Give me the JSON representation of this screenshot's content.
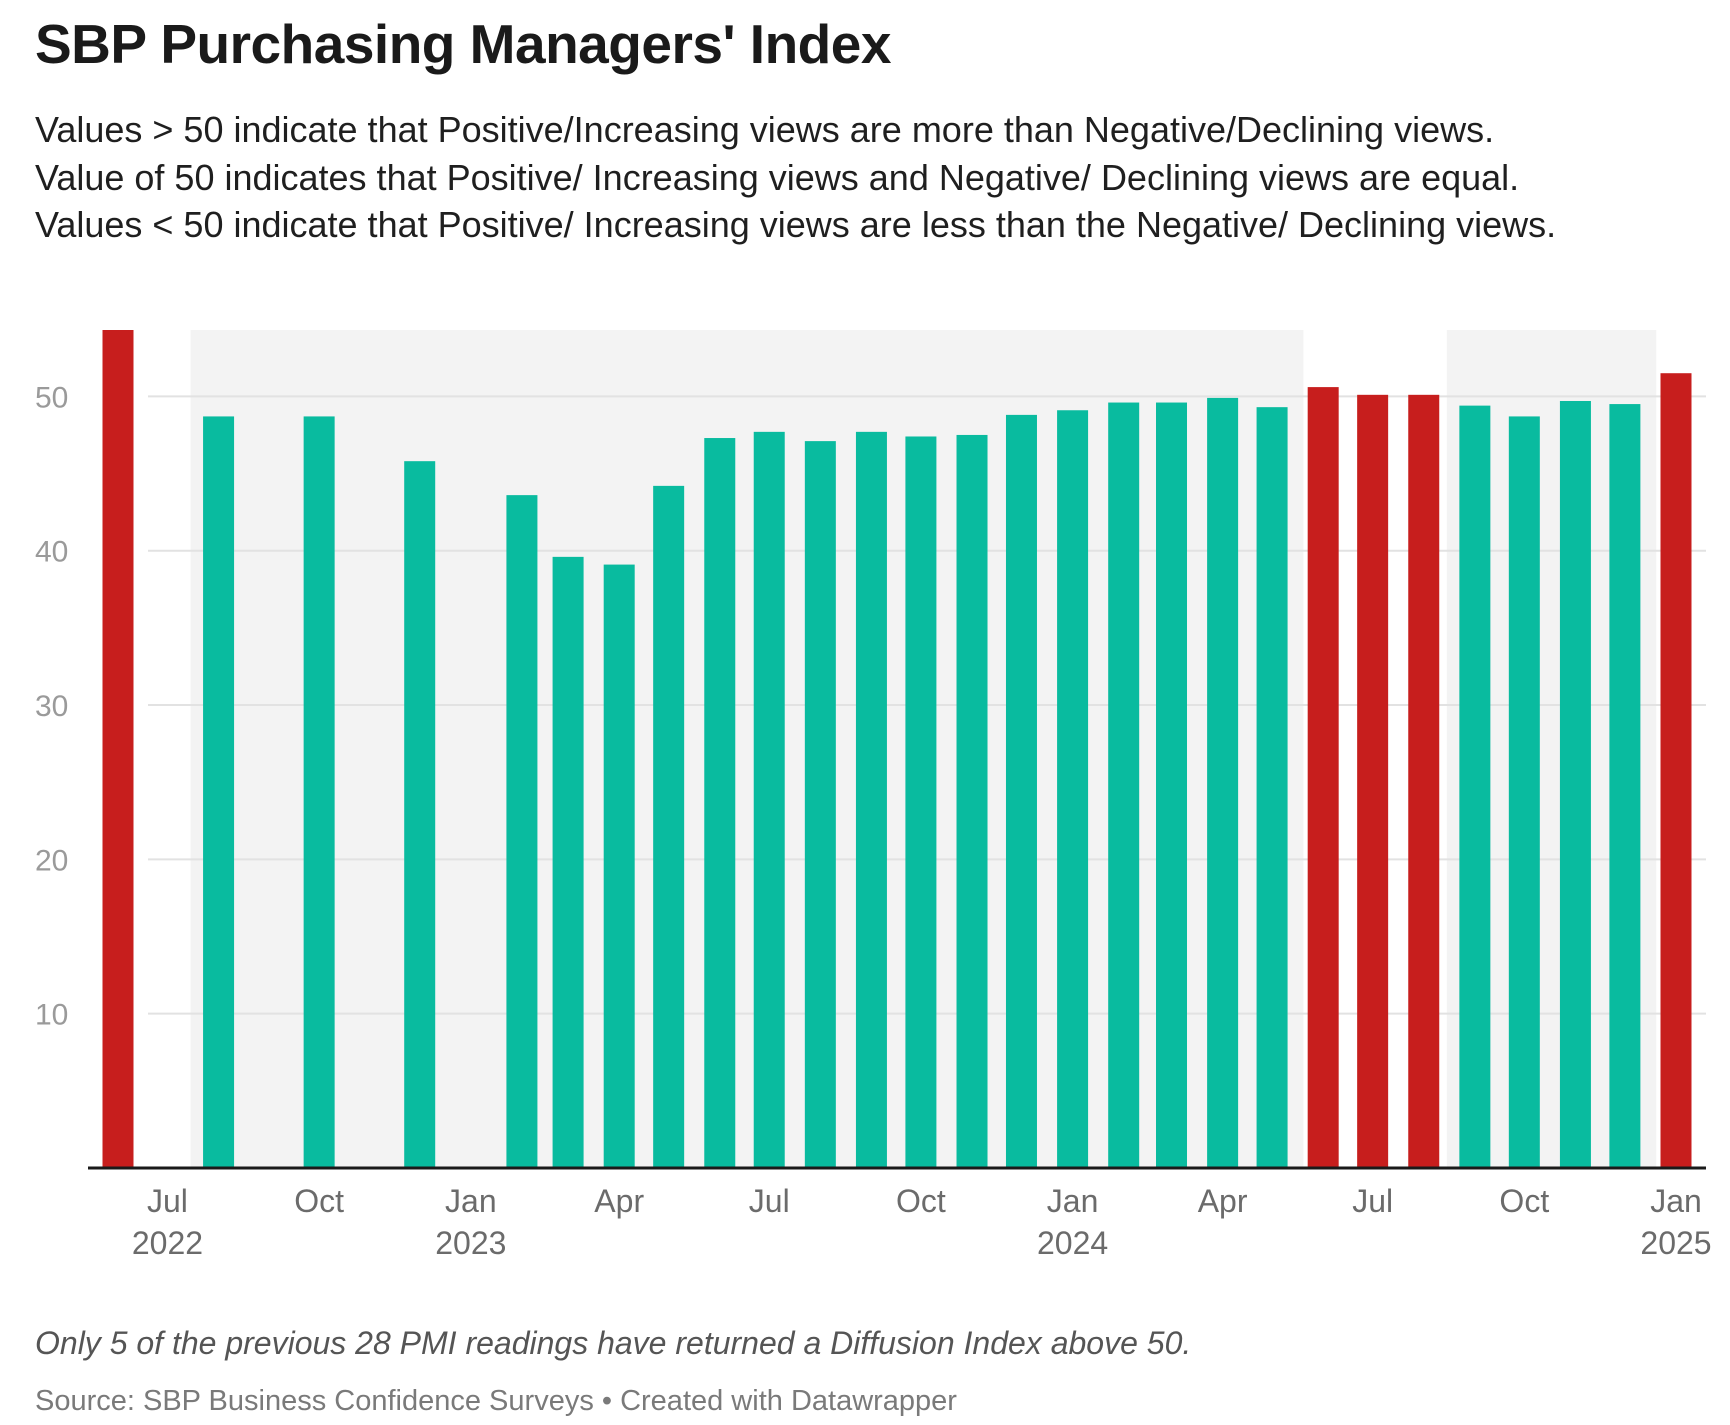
{
  "chart_data": {
    "type": "bar",
    "title": "SBP Purchasing Managers' Index",
    "subtitle_lines": [
      "Values > 50 indicate that Positive/Increasing views are more than Negative/Declining views.",
      "Value of 50 indicates that Positive/ Increasing views and Negative/ Declining views are equal.",
      "Values < 50 indicate that Positive/ Increasing views are less than the Negative/ Declining views."
    ],
    "notes": "Only 5 of the previous 28 PMI readings have returned a Diffusion Index above 50.",
    "source": "Source: SBP Business Confidence Surveys • Created with Datawrapper",
    "ylim": [
      0,
      54.3
    ],
    "yticks": [
      10,
      20,
      30,
      40,
      50
    ],
    "x_range": [
      "2022-06-01",
      "2025-01-01"
    ],
    "x_ticks": [
      {
        "date": "2022-07-01",
        "label": "Jul",
        "year": "2022"
      },
      {
        "date": "2022-10-01",
        "label": "Oct",
        "year": ""
      },
      {
        "date": "2023-01-01",
        "label": "Jan",
        "year": "2023"
      },
      {
        "date": "2023-04-01",
        "label": "Apr",
        "year": ""
      },
      {
        "date": "2023-07-01",
        "label": "Jul",
        "year": ""
      },
      {
        "date": "2023-10-01",
        "label": "Oct",
        "year": ""
      },
      {
        "date": "2024-01-01",
        "label": "Jan",
        "year": "2024"
      },
      {
        "date": "2024-04-01",
        "label": "Apr",
        "year": ""
      },
      {
        "date": "2024-07-01",
        "label": "Jul",
        "year": ""
      },
      {
        "date": "2024-10-01",
        "label": "Oct",
        "year": ""
      },
      {
        "date": "2025-01-01",
        "label": "Jan",
        "year": "2025"
      }
    ],
    "shaded_ranges": [
      {
        "from": "2022-07-15",
        "to": "2024-05-20"
      },
      {
        "from": "2024-08-15",
        "to": "2024-12-20"
      }
    ],
    "colors": {
      "above_50": "#c71e1d",
      "below_50": "#09bb9f",
      "shade": "#f3f3f3",
      "grid": "#e2e2e2",
      "baseline": "#1a1a1a"
    },
    "bars": [
      {
        "date": "2022-06-01",
        "value": 54.3
      },
      {
        "date": "2022-08-01",
        "value": 48.7
      },
      {
        "date": "2022-10-01",
        "value": 48.7
      },
      {
        "date": "2022-12-01",
        "value": 45.8
      },
      {
        "date": "2023-02-01",
        "value": 43.6
      },
      {
        "date": "2023-03-01",
        "value": 39.6
      },
      {
        "date": "2023-04-01",
        "value": 39.1
      },
      {
        "date": "2023-05-01",
        "value": 44.2
      },
      {
        "date": "2023-06-01",
        "value": 47.3
      },
      {
        "date": "2023-07-01",
        "value": 47.7
      },
      {
        "date": "2023-08-01",
        "value": 47.1
      },
      {
        "date": "2023-09-01",
        "value": 47.7
      },
      {
        "date": "2023-10-01",
        "value": 47.4
      },
      {
        "date": "2023-11-01",
        "value": 47.5
      },
      {
        "date": "2023-12-01",
        "value": 48.8
      },
      {
        "date": "2024-01-01",
        "value": 49.1
      },
      {
        "date": "2024-02-01",
        "value": 49.6
      },
      {
        "date": "2024-03-01",
        "value": 49.6
      },
      {
        "date": "2024-04-01",
        "value": 49.9
      },
      {
        "date": "2024-05-01",
        "value": 49.3
      },
      {
        "date": "2024-06-01",
        "value": 50.6
      },
      {
        "date": "2024-07-01",
        "value": 50.1
      },
      {
        "date": "2024-08-01",
        "value": 50.1
      },
      {
        "date": "2024-09-01",
        "value": 49.4
      },
      {
        "date": "2024-10-01",
        "value": 48.7
      },
      {
        "date": "2024-11-01",
        "value": 49.7
      },
      {
        "date": "2024-12-01",
        "value": 49.5
      },
      {
        "date": "2025-01-01",
        "value": 51.5
      }
    ]
  }
}
